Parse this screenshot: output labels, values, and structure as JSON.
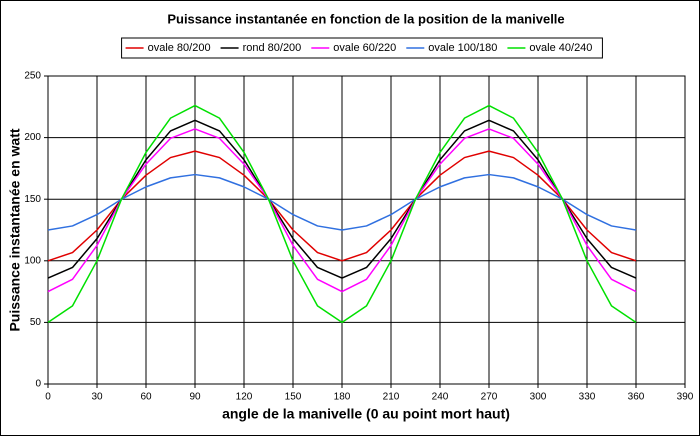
{
  "chart_data": {
    "type": "line",
    "title": "Puissance instantanée en fonction de la position de la manivelle",
    "x_label": "angle de la manivelle (0 au point mort haut)",
    "y_label": "Puissance instantanée en watt",
    "x": [
      0,
      15,
      30,
      45,
      60,
      75,
      90,
      105,
      120,
      135,
      150,
      165,
      180,
      195,
      210,
      225,
      240,
      255,
      270,
      285,
      300,
      315,
      330,
      345,
      360
    ],
    "series": [
      {
        "name": "ovale 80/200",
        "color": "#e00000",
        "values": [
          100,
          106.7,
          125,
          150,
          169.5,
          183.8,
          189,
          183.8,
          169.5,
          150,
          125,
          106.7,
          100,
          106.7,
          125,
          150,
          169.5,
          183.8,
          189,
          183.8,
          169.5,
          150,
          125,
          106.7,
          100
        ]
      },
      {
        "name": "rond 80/200",
        "color": "#000000",
        "values": [
          86,
          94.6,
          118,
          150,
          182,
          205.4,
          214,
          205.4,
          182,
          150,
          118,
          94.6,
          86,
          94.6,
          118,
          150,
          182,
          205.4,
          214,
          205.4,
          182,
          150,
          118,
          94.6,
          86
        ]
      },
      {
        "name": "ovale 60/220",
        "color": "#ff00ff",
        "values": [
          75,
          85,
          112.5,
          150,
          178.5,
          199.4,
          207,
          199.4,
          178.5,
          150,
          112.5,
          85,
          75,
          85,
          112.5,
          150,
          178.5,
          199.4,
          207,
          199.4,
          178.5,
          150,
          112.5,
          85,
          75
        ]
      },
      {
        "name": "ovale 100/180",
        "color": "#3070e0",
        "values": [
          125,
          128.3,
          137.5,
          150,
          160,
          167.3,
          170,
          167.3,
          160,
          150,
          137.5,
          128.3,
          125,
          128.3,
          137.5,
          150,
          160,
          167.3,
          170,
          167.3,
          160,
          150,
          137.5,
          128.3,
          125
        ]
      },
      {
        "name": "ovale 40/240",
        "color": "#00e000",
        "values": [
          50,
          63.4,
          100,
          150,
          188,
          215.8,
          226,
          215.8,
          188,
          150,
          100,
          63.4,
          50,
          63.4,
          100,
          150,
          188,
          215.8,
          226,
          215.8,
          188,
          150,
          100,
          63.4,
          50
        ]
      }
    ],
    "xlim": [
      0,
      390
    ],
    "xticks": [
      0,
      30,
      60,
      90,
      120,
      150,
      180,
      210,
      240,
      270,
      300,
      330,
      360,
      390
    ],
    "ylim": [
      0,
      250
    ],
    "yticks": [
      0,
      50,
      100,
      150,
      200,
      250
    ],
    "grid": true,
    "legend": "top"
  }
}
